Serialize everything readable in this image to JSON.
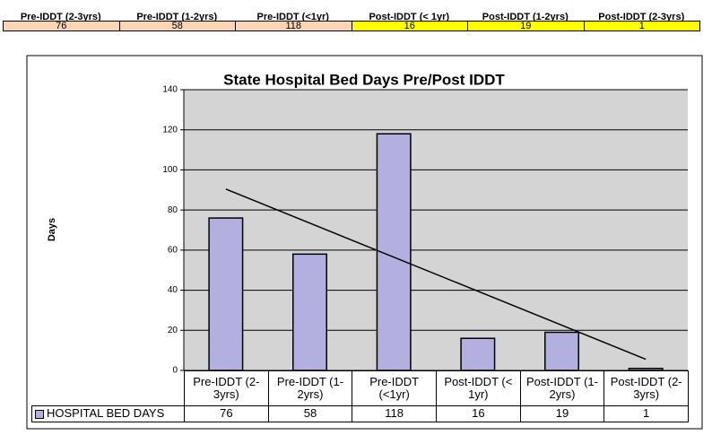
{
  "chart_data": {
    "type": "bar",
    "title": "State Hospital Bed Days Pre/Post IDDT",
    "y_label": "Days",
    "categories": [
      "Pre-IDDT (2-3yrs)",
      "Pre-IDDT (1-2yrs)",
      "Pre-IDDT (<1yr)",
      "Post-IDDT (< 1yr)",
      "Post-IDDT (1-2yrs)",
      "Post-IDDT (2-3yrs)"
    ],
    "series": [
      {
        "name": "HOSPITAL BED DAYS",
        "color": "#b3b0e0",
        "values": [
          76,
          58,
          118,
          16,
          19,
          1
        ]
      }
    ],
    "ylim": [
      0,
      140
    ],
    "yticks": [
      0,
      20,
      40,
      60,
      80,
      100,
      120,
      140
    ],
    "grid": true,
    "trendline": "linear",
    "data_table": true,
    "summary_colors": [
      "#fcd5b4",
      "#fcd5b4",
      "#fcd5b4",
      "#ffff00",
      "#ffff00",
      "#ffff00"
    ]
  }
}
